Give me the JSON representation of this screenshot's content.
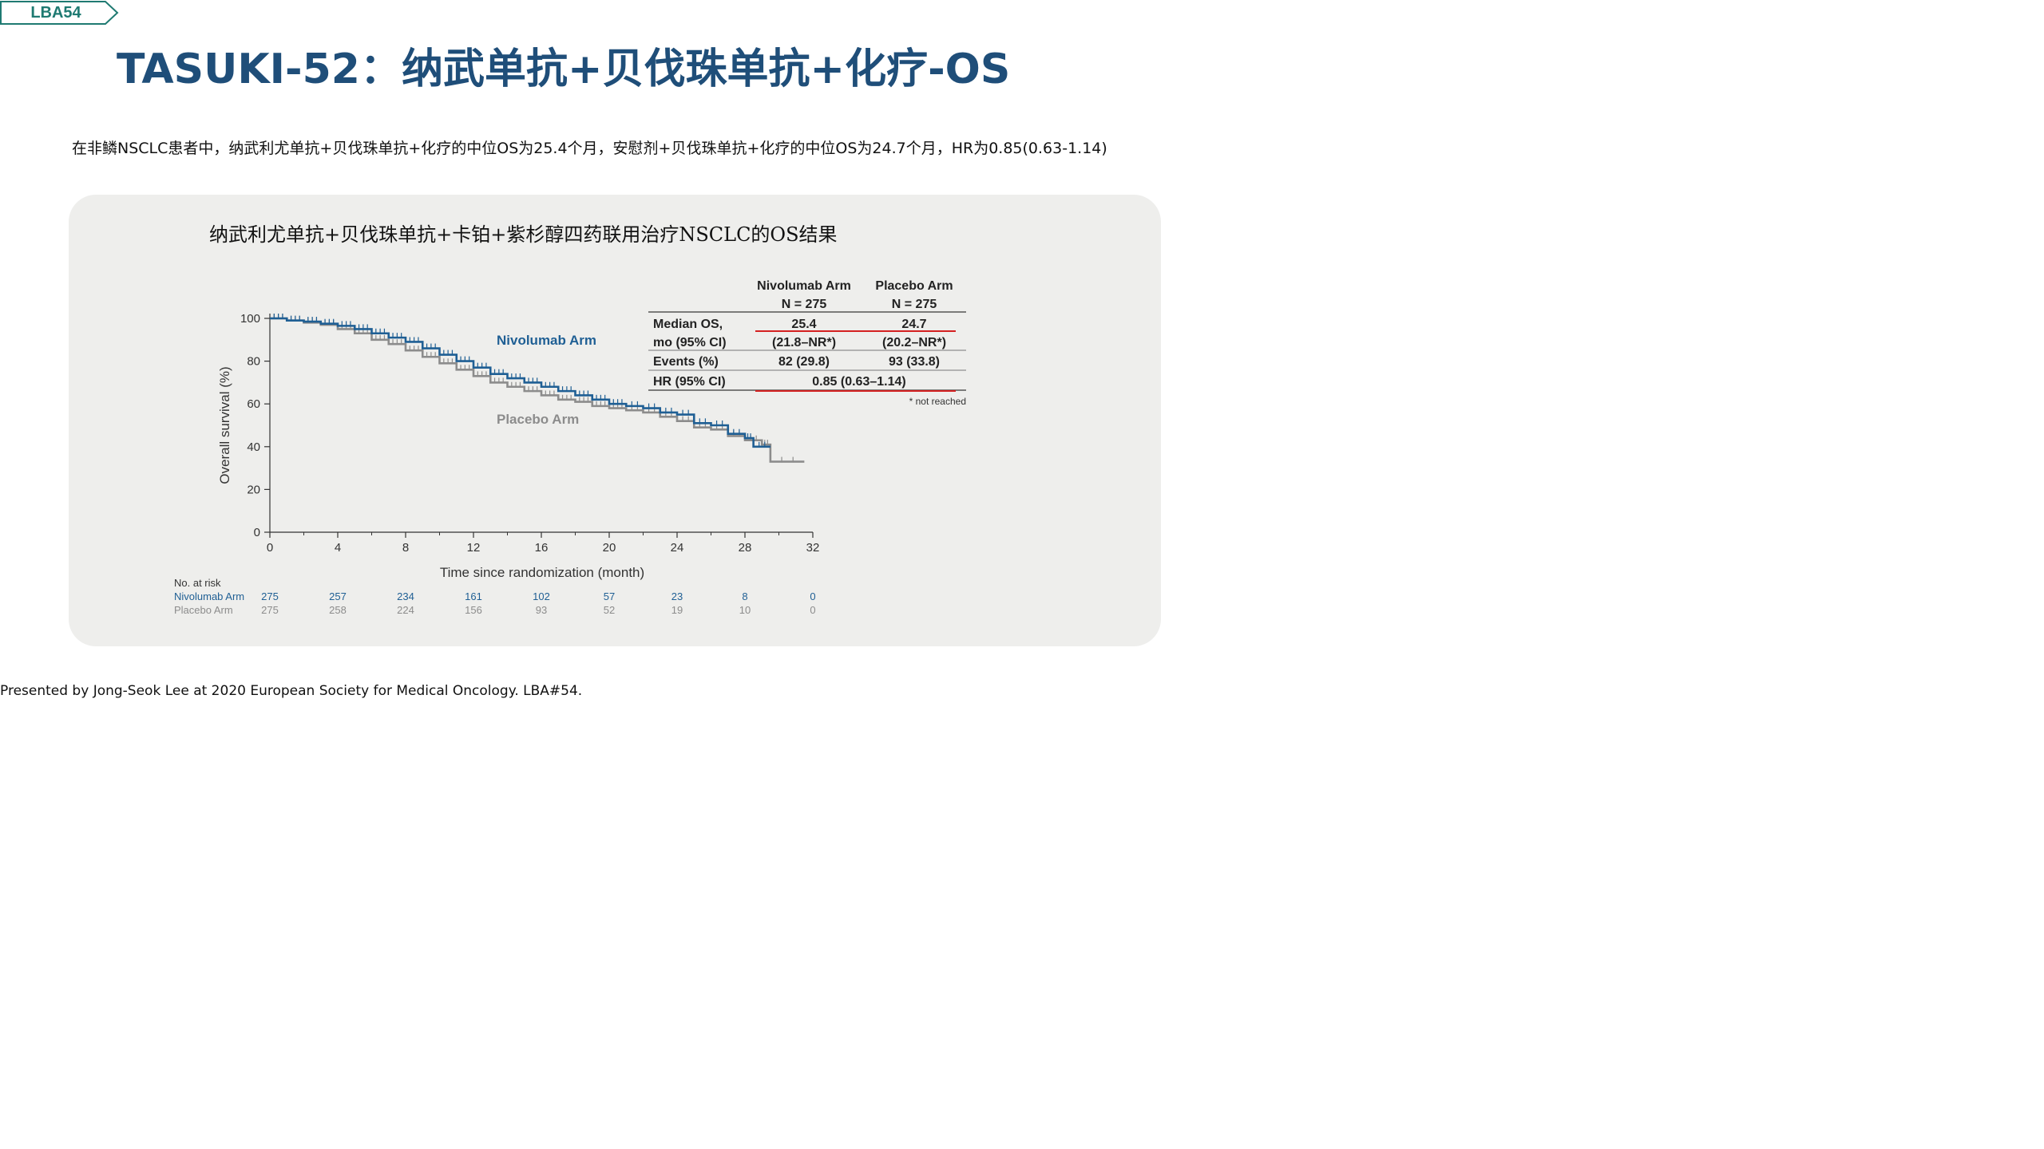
{
  "slide": {
    "tag": "LBA54",
    "title": "TASUKI-52：纳武单抗+贝伐珠单抗+化疗-OS",
    "summary": "在非鳞NSCLC患者中，纳武利尤单抗+贝伐珠单抗+化疗的中位OS为25.4个月，安慰剂+贝伐珠单抗+化疗的中位OS为24.7个月，HR为0.85(0.63-1.14)",
    "footer": "Presented by Jong-Seok Lee at 2020 European Society for Medical Oncology. LBA#54."
  },
  "colors": {
    "title": "#1f4e79",
    "tag": "#1f7a72",
    "nivolumab": "#1f5f94",
    "placebo": "#8c8c8c",
    "highlight": "#d42020",
    "panel": "#eeeeec"
  },
  "chart_data": {
    "type": "line",
    "title": "纳武利尤单抗+贝伐珠单抗+卡铂+紫杉醇四药联用治疗NSCLC的OS结果",
    "xlabel": "Time since randomization (month)",
    "ylabel": "Overall survival (%)",
    "xlim": [
      0,
      32
    ],
    "ylim": [
      0,
      100
    ],
    "xticks": [
      "0",
      "4",
      "8",
      "12",
      "16",
      "20",
      "24",
      "28",
      "32"
    ],
    "yticks": [
      "0",
      "20",
      "40",
      "60",
      "80",
      "100"
    ],
    "series": [
      {
        "name": "Nivolumab Arm",
        "label": "Nivolumab Arm",
        "color": "#1f5f94",
        "x": [
          0,
          1,
          2,
          3,
          4,
          5,
          6,
          7,
          8,
          9,
          10,
          11,
          12,
          13,
          14,
          15,
          16,
          17,
          18,
          19,
          20,
          21,
          22,
          23,
          24,
          25,
          26,
          27,
          28,
          28.5,
          29.5
        ],
        "y": [
          100,
          99,
          98.5,
          97.5,
          96.5,
          95,
          93,
          91,
          89,
          86,
          83,
          80,
          77,
          74,
          72,
          70,
          68,
          66,
          64,
          62,
          60,
          59,
          58,
          56,
          55,
          51,
          50,
          46,
          44,
          40,
          40
        ]
      },
      {
        "name": "Placebo Arm",
        "label": "Placebo Arm",
        "color": "#8c8c8c",
        "x": [
          0,
          1,
          2,
          3,
          4,
          5,
          6,
          7,
          8,
          9,
          10,
          11,
          12,
          13,
          14,
          15,
          16,
          17,
          18,
          19,
          20,
          21,
          22,
          23,
          24,
          25,
          26,
          27,
          28,
          29,
          29.5,
          31.5
        ],
        "y": [
          100,
          99,
          98,
          97,
          95,
          93,
          90,
          88,
          85,
          82,
          79,
          76,
          73,
          70,
          68,
          66,
          64,
          62,
          61,
          59,
          58,
          57,
          56,
          54,
          52,
          49,
          48,
          45,
          43,
          41,
          33,
          33
        ]
      }
    ],
    "stats_table": {
      "headers": [
        [
          "Nivolumab Arm",
          "N = 275"
        ],
        [
          "Placebo Arm",
          "N = 275"
        ]
      ],
      "rows": [
        {
          "label": [
            "Median OS,",
            "mo (95% CI)"
          ],
          "niv": [
            "25.4",
            "(21.8–NR*)"
          ],
          "pla": [
            "24.7",
            "(20.2–NR*)"
          ]
        },
        {
          "label": [
            "Events (%)"
          ],
          "niv": [
            "82 (29.8)"
          ],
          "pla": [
            "93 (33.8)"
          ]
        },
        {
          "label": [
            "HR (95% CI)"
          ],
          "span": "0.85 (0.63–1.14)"
        }
      ],
      "footnote": "* not reached"
    },
    "at_risk": {
      "title": "No. at risk",
      "times": [
        0,
        4,
        8,
        12,
        16,
        20,
        24,
        28,
        32
      ],
      "rows": [
        {
          "label": "Nivolumab Arm",
          "values": [
            "275",
            "257",
            "234",
            "161",
            "102",
            "57",
            "23",
            "8",
            "0"
          ]
        },
        {
          "label": "Placebo Arm",
          "values": [
            "275",
            "258",
            "224",
            "156",
            "93",
            "52",
            "19",
            "10",
            "0"
          ]
        }
      ]
    }
  }
}
